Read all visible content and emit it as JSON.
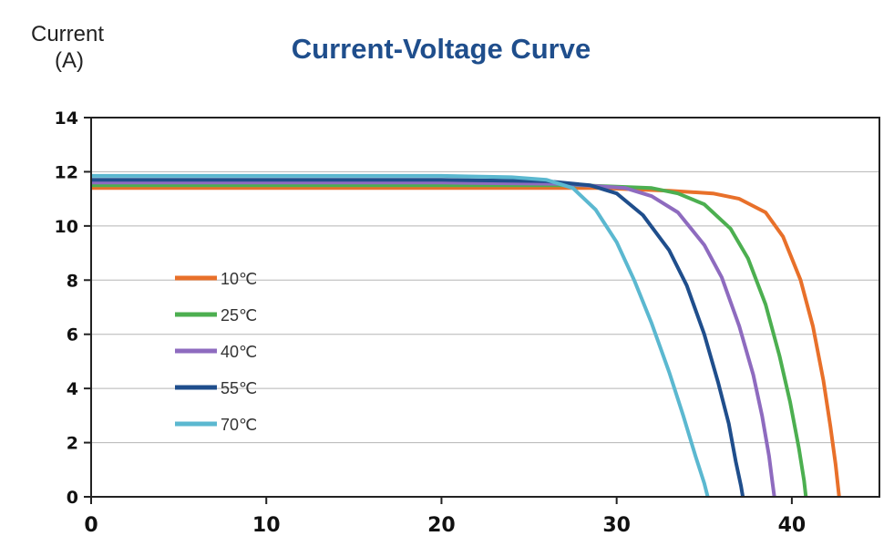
{
  "chart_data": {
    "type": "line",
    "title": "Current-Voltage Curve",
    "ylabel_line1": "Current",
    "ylabel_line2": "(A)",
    "xlabel": "",
    "xlim": [
      0,
      45
    ],
    "ylim": [
      0,
      14
    ],
    "x_ticks": [
      0,
      10,
      20,
      30,
      40
    ],
    "y_ticks": [
      0,
      2,
      4,
      6,
      8,
      10,
      12,
      14
    ],
    "grid": "horizontal",
    "legend_position": "left",
    "series": [
      {
        "name": "10℃",
        "color": "#e8702a",
        "points": [
          [
            0,
            11.4
          ],
          [
            20,
            11.4
          ],
          [
            29,
            11.4
          ],
          [
            33,
            11.3
          ],
          [
            35.5,
            11.2
          ],
          [
            37,
            11.0
          ],
          [
            38.5,
            10.5
          ],
          [
            39.5,
            9.6
          ],
          [
            40.5,
            8.0
          ],
          [
            41.2,
            6.3
          ],
          [
            41.8,
            4.3
          ],
          [
            42.2,
            2.6
          ],
          [
            42.5,
            1.2
          ],
          [
            42.7,
            0
          ]
        ]
      },
      {
        "name": "25℃",
        "color": "#4caf50",
        "points": [
          [
            0,
            11.5
          ],
          [
            20,
            11.5
          ],
          [
            28,
            11.5
          ],
          [
            32,
            11.4
          ],
          [
            33.5,
            11.2
          ],
          [
            35,
            10.8
          ],
          [
            36.5,
            9.9
          ],
          [
            37.5,
            8.8
          ],
          [
            38.5,
            7.1
          ],
          [
            39.3,
            5.2
          ],
          [
            39.9,
            3.5
          ],
          [
            40.4,
            1.8
          ],
          [
            40.7,
            0.6
          ],
          [
            40.8,
            0
          ]
        ]
      },
      {
        "name": "40℃",
        "color": "#8e6bbf",
        "points": [
          [
            0,
            11.6
          ],
          [
            20,
            11.6
          ],
          [
            27,
            11.55
          ],
          [
            30.5,
            11.4
          ],
          [
            32,
            11.1
          ],
          [
            33.5,
            10.5
          ],
          [
            35,
            9.3
          ],
          [
            36,
            8.1
          ],
          [
            37,
            6.3
          ],
          [
            37.8,
            4.5
          ],
          [
            38.3,
            3.0
          ],
          [
            38.7,
            1.5
          ],
          [
            38.9,
            0.5
          ],
          [
            39.0,
            0
          ]
        ]
      },
      {
        "name": "55℃",
        "color": "#1f4e8c",
        "points": [
          [
            0,
            11.7
          ],
          [
            20,
            11.7
          ],
          [
            26,
            11.65
          ],
          [
            28.5,
            11.5
          ],
          [
            30,
            11.2
          ],
          [
            31.5,
            10.4
          ],
          [
            33,
            9.1
          ],
          [
            34,
            7.8
          ],
          [
            35,
            6.0
          ],
          [
            35.8,
            4.2
          ],
          [
            36.4,
            2.7
          ],
          [
            36.8,
            1.3
          ],
          [
            37.1,
            0.4
          ],
          [
            37.2,
            0
          ]
        ]
      },
      {
        "name": "70℃",
        "color": "#5bb8d0",
        "points": [
          [
            0,
            11.85
          ],
          [
            20,
            11.85
          ],
          [
            24,
            11.8
          ],
          [
            26,
            11.7
          ],
          [
            27.5,
            11.4
          ],
          [
            28.8,
            10.6
          ],
          [
            30,
            9.4
          ],
          [
            31,
            8.0
          ],
          [
            32,
            6.4
          ],
          [
            33,
            4.6
          ],
          [
            33.8,
            3.0
          ],
          [
            34.5,
            1.5
          ],
          [
            35,
            0.5
          ],
          [
            35.2,
            0
          ]
        ]
      }
    ]
  }
}
